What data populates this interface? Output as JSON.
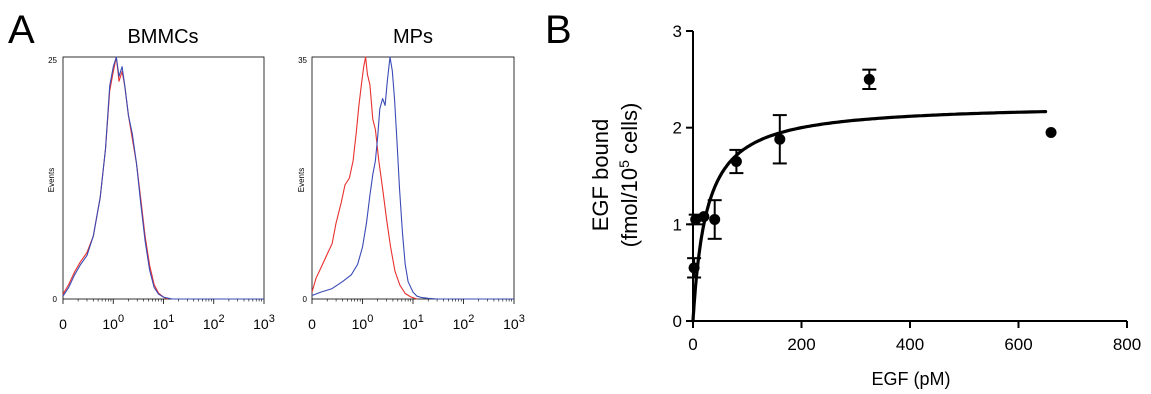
{
  "panel_a_letter": "A",
  "panel_b_letter": "B",
  "chart_data": [
    {
      "type": "line",
      "panel": "A",
      "title": "BMMCs",
      "ylabel": "Events",
      "y_top_label": "25",
      "y_bottom_label": "0",
      "xscale": "log",
      "xlim": [
        0.1,
        1000
      ],
      "x_ticks": [
        0.1,
        1,
        10,
        100,
        1000
      ],
      "x_tick_labels": [
        {
          "base": "0",
          "exp": ""
        },
        {
          "base": "10",
          "exp": "0"
        },
        {
          "base": "10",
          "exp": "1"
        },
        {
          "base": "10",
          "exp": "2"
        },
        {
          "base": "10",
          "exp": "3"
        }
      ],
      "ylim": [
        0,
        25
      ],
      "series": [
        {
          "color": "#e8312f",
          "x": [
            0.1,
            0.13,
            0.17,
            0.22,
            0.3,
            0.4,
            0.55,
            0.7,
            0.85,
            1.0,
            1.15,
            1.3,
            1.5,
            1.7,
            2.0,
            2.4,
            2.9,
            3.5,
            4.3,
            5.3,
            6.5,
            8,
            10,
            12
          ],
          "y": [
            0.5,
            1.5,
            2.8,
            3.8,
            4.8,
            6.5,
            10.5,
            15.5,
            21.5,
            23.5,
            25,
            22.5,
            23.5,
            22,
            19,
            16.5,
            14,
            10.5,
            6.5,
            3.5,
            1.5,
            0.6,
            0.2,
            0
          ]
        },
        {
          "color": "#3a4bb5",
          "x": [
            0.1,
            0.13,
            0.17,
            0.22,
            0.3,
            0.4,
            0.55,
            0.7,
            0.85,
            1.0,
            1.15,
            1.3,
            1.5,
            1.7,
            2.0,
            2.4,
            2.9,
            3.5,
            4.3,
            5.3,
            6.5,
            8,
            10,
            12,
            15,
            20,
            50,
            200,
            1000
          ],
          "y": [
            0.3,
            1.2,
            2.5,
            3.5,
            4.5,
            6.5,
            10.5,
            15.5,
            22,
            24,
            25,
            23,
            24,
            22,
            19,
            17,
            14,
            10,
            6,
            3,
            1.2,
            0.5,
            0.2,
            0.1,
            0,
            0,
            0,
            0,
            0
          ]
        }
      ]
    },
    {
      "type": "line",
      "panel": "A",
      "title": "MPs",
      "ylabel": "Events",
      "y_top_label": "35",
      "y_bottom_label": "0",
      "xscale": "log",
      "xlim": [
        0.1,
        1000
      ],
      "x_ticks": [
        0.1,
        1,
        10,
        100,
        1000
      ],
      "x_tick_labels": [
        {
          "base": "0",
          "exp": ""
        },
        {
          "base": "10",
          "exp": "0"
        },
        {
          "base": "10",
          "exp": "1"
        },
        {
          "base": "10",
          "exp": "2"
        },
        {
          "base": "10",
          "exp": "3"
        }
      ],
      "ylim": [
        0,
        35
      ],
      "series": [
        {
          "color": "#e8312f",
          "x": [
            0.1,
            0.12,
            0.15,
            0.2,
            0.25,
            0.3,
            0.38,
            0.45,
            0.55,
            0.65,
            0.75,
            0.85,
            0.95,
            1.05,
            1.15,
            1.25,
            1.4,
            1.6,
            1.8,
            2.1,
            2.5,
            3,
            3.6,
            4.4,
            5.5,
            7,
            9,
            12
          ],
          "y": [
            1,
            3,
            4.5,
            6.5,
            8,
            11,
            14,
            16.5,
            17.5,
            20,
            24,
            28,
            31,
            33.5,
            35,
            32.5,
            31,
            26,
            24.5,
            20,
            16,
            11.5,
            7.5,
            4,
            2,
            0.8,
            0.3,
            0
          ]
        },
        {
          "color": "#3a4bb5",
          "x": [
            0.1,
            0.15,
            0.25,
            0.4,
            0.6,
            0.8,
            1.0,
            1.2,
            1.4,
            1.6,
            1.8,
            2.0,
            2.2,
            2.5,
            2.8,
            3.1,
            3.5,
            3.9,
            4.3,
            4.8,
            5.4,
            6.2,
            7,
            8,
            10,
            12,
            15,
            20,
            30,
            100,
            1000
          ],
          "y": [
            0.5,
            1,
            1.5,
            2.5,
            3.5,
            5,
            7.5,
            11,
            15,
            18,
            20,
            23.5,
            27.5,
            29,
            28,
            31.5,
            35,
            33,
            29,
            23,
            16,
            9.5,
            5,
            2.5,
            1,
            0.4,
            0.2,
            0.1,
            0,
            0,
            0
          ]
        }
      ]
    },
    {
      "type": "scatter",
      "panel": "B",
      "xlabel": "EGF (pM)",
      "ylabel_line1": "EGF bound",
      "ylabel_line2_prefix": "(fmol/10",
      "ylabel_line2_sup": "5",
      "ylabel_line2_suffix": " cells)",
      "xlim": [
        0,
        800
      ],
      "ylim": [
        0,
        3
      ],
      "x_ticks": [
        0,
        200,
        400,
        600,
        800
      ],
      "x_tick_labels": [
        "0",
        "200",
        "400",
        "600",
        "800"
      ],
      "y_ticks": [
        0,
        1,
        2,
        3
      ],
      "y_tick_labels": [
        "0",
        "1",
        "2",
        "3"
      ],
      "points": [
        {
          "x": 2,
          "y": 0.55,
          "err": 0.1
        },
        {
          "x": 5,
          "y": 1.05,
          "err": 0.05
        },
        {
          "x": 20,
          "y": 1.08,
          "err": 0
        },
        {
          "x": 40,
          "y": 1.05,
          "err": 0.2
        },
        {
          "x": 80,
          "y": 1.65,
          "err": 0.12
        },
        {
          "x": 160,
          "y": 1.88,
          "err": 0.25
        },
        {
          "x": 325,
          "y": 2.5,
          "err": 0.1
        },
        {
          "x": 660,
          "y": 1.95,
          "err": 0
        }
      ],
      "fit": {
        "bmax": 2.25,
        "kd": 25,
        "x_end": 650,
        "color": "#000000"
      }
    }
  ]
}
